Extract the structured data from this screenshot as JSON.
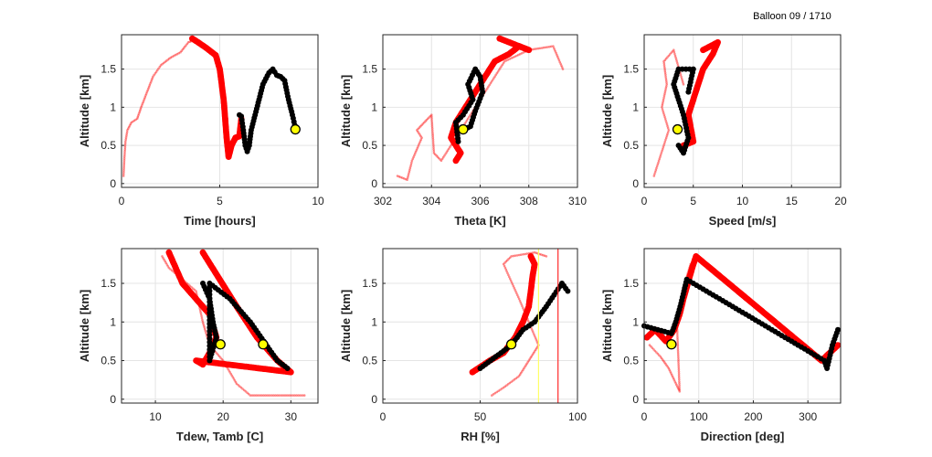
{
  "figure_title": "Balloon 09 / 1710",
  "colors": {
    "track_all": "#ff0000",
    "recent": "#000000",
    "current": "#ffff00",
    "rh_80": "#ffff66",
    "rh_90": "#ff2a2a"
  },
  "chart_data": [
    {
      "type": "scatter",
      "xlabel": "Time [hours]",
      "ylabel": "Altitude [km]",
      "xlim": [
        0,
        10
      ],
      "ylim": [
        -0.05,
        1.95
      ],
      "xticks": [
        0,
        5,
        10
      ],
      "xtick_labels": [
        "0",
        "5",
        "10"
      ],
      "yticks": [
        0,
        0.5,
        1,
        1.5
      ],
      "ytick_labels": [
        "0",
        "0.5",
        "1",
        "1.5"
      ],
      "grid": true,
      "series": [
        {
          "role": "faint",
          "points": [
            [
              0.1,
              0.1
            ],
            [
              0.15,
              0.35
            ],
            [
              0.2,
              0.55
            ],
            [
              0.3,
              0.7
            ],
            [
              0.5,
              0.8
            ],
            [
              0.8,
              0.85
            ],
            [
              1.0,
              1.0
            ],
            [
              1.3,
              1.2
            ],
            [
              1.6,
              1.4
            ],
            [
              2.0,
              1.55
            ],
            [
              2.5,
              1.65
            ],
            [
              3.0,
              1.72
            ],
            [
              3.4,
              1.85
            ],
            [
              3.7,
              1.88
            ]
          ]
        },
        {
          "role": "bold",
          "points": [
            [
              3.6,
              1.9
            ],
            [
              3.9,
              1.85
            ],
            [
              4.3,
              1.78
            ],
            [
              4.6,
              1.72
            ],
            [
              4.8,
              1.68
            ],
            [
              5.0,
              1.5
            ],
            [
              5.2,
              1.1
            ],
            [
              5.35,
              0.6
            ],
            [
              5.45,
              0.35
            ],
            [
              5.6,
              0.5
            ],
            [
              5.8,
              0.6
            ],
            [
              6.0,
              0.62
            ],
            [
              6.1,
              0.85
            ]
          ]
        },
        {
          "role": "recent",
          "points": [
            [
              6.0,
              0.9
            ],
            [
              6.1,
              0.88
            ],
            [
              6.2,
              0.7
            ],
            [
              6.3,
              0.5
            ],
            [
              6.4,
              0.42
            ],
            [
              6.5,
              0.5
            ],
            [
              6.6,
              0.7
            ],
            [
              6.8,
              0.9
            ],
            [
              7.0,
              1.1
            ],
            [
              7.2,
              1.3
            ],
            [
              7.5,
              1.45
            ],
            [
              7.7,
              1.5
            ],
            [
              7.9,
              1.42
            ],
            [
              8.1,
              1.4
            ],
            [
              8.3,
              1.35
            ],
            [
              8.5,
              1.1
            ],
            [
              8.7,
              0.9
            ],
            [
              8.85,
              0.72
            ]
          ]
        }
      ],
      "current": [
        8.85,
        0.71
      ]
    },
    {
      "type": "scatter",
      "xlabel": "Theta [K]",
      "ylabel": "Altitude [km]",
      "xlim": [
        302,
        310
      ],
      "ylim": [
        -0.05,
        1.95
      ],
      "xticks": [
        302,
        304,
        306,
        308,
        310
      ],
      "xtick_labels": [
        "302",
        "304",
        "306",
        "308",
        "310"
      ],
      "yticks": [
        0,
        0.5,
        1,
        1.5
      ],
      "ytick_labels": [
        "0",
        "0.5",
        "1",
        "1.5"
      ],
      "grid": true,
      "series": [
        {
          "role": "faint",
          "points": [
            [
              302.6,
              0.1
            ],
            [
              303.0,
              0.05
            ],
            [
              303.2,
              0.3
            ],
            [
              303.6,
              0.6
            ],
            [
              303.4,
              0.7
            ],
            [
              303.7,
              0.8
            ],
            [
              304.0,
              0.9
            ],
            [
              304.1,
              0.4
            ],
            [
              304.4,
              0.3
            ],
            [
              307.0,
              1.6
            ],
            [
              308.0,
              1.75
            ],
            [
              309.0,
              1.8
            ],
            [
              309.4,
              1.5
            ]
          ]
        },
        {
          "role": "bold",
          "points": [
            [
              305.0,
              0.3
            ],
            [
              305.2,
              0.4
            ],
            [
              304.8,
              0.6
            ],
            [
              305.0,
              0.8
            ],
            [
              305.4,
              1.0
            ],
            [
              305.8,
              1.2
            ],
            [
              306.2,
              1.4
            ],
            [
              306.6,
              1.6
            ],
            [
              307.2,
              1.7
            ],
            [
              307.6,
              1.8
            ],
            [
              308.0,
              1.75
            ],
            [
              306.8,
              1.9
            ]
          ]
        },
        {
          "role": "recent",
          "points": [
            [
              305.1,
              0.55
            ],
            [
              305.0,
              0.8
            ],
            [
              305.3,
              0.9
            ],
            [
              305.7,
              1.1
            ],
            [
              305.5,
              1.3
            ],
            [
              305.8,
              1.5
            ],
            [
              306.0,
              1.4
            ],
            [
              306.1,
              1.2
            ],
            [
              305.8,
              0.95
            ],
            [
              305.6,
              0.75
            ],
            [
              305.3,
              0.7
            ]
          ]
        }
      ],
      "current": [
        305.3,
        0.71
      ]
    },
    {
      "type": "scatter",
      "xlabel": "Speed [m/s]",
      "ylabel": "Altitude [km]",
      "xlim": [
        0,
        20
      ],
      "ylim": [
        -0.05,
        1.95
      ],
      "xticks": [
        0,
        5,
        10,
        15,
        20
      ],
      "xtick_labels": [
        "0",
        "5",
        "10",
        "15",
        "20"
      ],
      "yticks": [
        0,
        0.5,
        1,
        1.5
      ],
      "ytick_labels": [
        "0",
        "0.5",
        "1",
        "1.5"
      ],
      "grid": true,
      "series": [
        {
          "role": "faint",
          "points": [
            [
              1.0,
              0.1
            ],
            [
              1.5,
              0.3
            ],
            [
              2.0,
              0.5
            ],
            [
              2.5,
              0.7
            ],
            [
              1.8,
              1.0
            ],
            [
              2.3,
              1.3
            ],
            [
              2.0,
              1.6
            ],
            [
              3.0,
              1.75
            ],
            [
              4.0,
              1.3
            ]
          ]
        },
        {
          "role": "bold",
          "points": [
            [
              4.0,
              0.5
            ],
            [
              5.0,
              0.55
            ],
            [
              4.5,
              0.9
            ],
            [
              5.0,
              1.1
            ],
            [
              5.5,
              1.3
            ],
            [
              6.0,
              1.5
            ],
            [
              7.0,
              1.7
            ],
            [
              7.5,
              1.85
            ],
            [
              6.0,
              1.75
            ]
          ]
        },
        {
          "role": "recent",
          "points": [
            [
              3.5,
              0.5
            ],
            [
              4.0,
              0.4
            ],
            [
              4.5,
              0.6
            ],
            [
              4.0,
              0.9
            ],
            [
              3.5,
              1.1
            ],
            [
              3.0,
              1.3
            ],
            [
              3.5,
              1.5
            ],
            [
              5.0,
              1.5
            ],
            [
              4.5,
              1.2
            ]
          ]
        }
      ],
      "current": [
        3.4,
        0.71
      ]
    },
    {
      "type": "scatter",
      "xlabel": "Tdew, Tamb [C]",
      "ylabel": "Altitude [km]",
      "xlim": [
        5,
        34
      ],
      "ylim": [
        -0.05,
        1.95
      ],
      "xticks": [
        10,
        20,
        30
      ],
      "xtick_labels": [
        "10",
        "20",
        "30"
      ],
      "yticks": [
        0,
        0.5,
        1,
        1.5
      ],
      "ytick_labels": [
        "0",
        "0.5",
        "1",
        "1.5"
      ],
      "grid": true,
      "series": [
        {
          "role": "faint",
          "points": [
            [
              11.0,
              1.85
            ],
            [
              12.0,
              1.7
            ],
            [
              14.0,
              1.55
            ],
            [
              16.0,
              1.4
            ],
            [
              17.0,
              1.0
            ],
            [
              18.0,
              0.7
            ],
            [
              20.0,
              0.5
            ],
            [
              22.0,
              0.2
            ],
            [
              24.0,
              0.05
            ],
            [
              30.0,
              0.05
            ],
            [
              32.0,
              0.05
            ]
          ]
        },
        {
          "role": "bold",
          "points": [
            [
              12.0,
              1.9
            ],
            [
              14.0,
              1.5
            ],
            [
              16.0,
              1.3
            ],
            [
              18.0,
              1.1
            ],
            [
              19.0,
              0.8
            ],
            [
              18.0,
              0.6
            ],
            [
              17.0,
              0.45
            ],
            [
              16.0,
              0.5
            ],
            [
              30.0,
              0.35
            ],
            [
              28.0,
              0.5
            ],
            [
              25.0,
              0.8
            ],
            [
              22.0,
              1.2
            ],
            [
              17.0,
              1.9
            ]
          ]
        },
        {
          "role": "recent",
          "points": [
            [
              17.0,
              1.5
            ],
            [
              18.0,
              1.3
            ],
            [
              18.5,
              1.0
            ],
            [
              19.0,
              0.8
            ],
            [
              18.0,
              0.5
            ],
            [
              18.0,
              1.5
            ],
            [
              21.0,
              1.3
            ],
            [
              24.0,
              1.0
            ],
            [
              26.0,
              0.75
            ],
            [
              28.0,
              0.5
            ],
            [
              29.5,
              0.4
            ]
          ]
        }
      ],
      "current": [
        [
          19.6,
          0.71
        ],
        [
          25.9,
          0.71
        ]
      ]
    },
    {
      "type": "scatter",
      "xlabel": "RH [%]",
      "ylabel": "Altitude [km]",
      "xlim": [
        0,
        100
      ],
      "ylim": [
        -0.05,
        1.95
      ],
      "xticks": [
        0,
        50,
        100
      ],
      "xtick_labels": [
        "0",
        "50",
        "100"
      ],
      "yticks": [
        0,
        0.5,
        1,
        1.5
      ],
      "ytick_labels": [
        "0",
        "0.5",
        "1",
        "1.5"
      ],
      "grid": true,
      "vlines": [
        80,
        90
      ],
      "series": [
        {
          "role": "faint",
          "points": [
            [
              56.0,
              0.05
            ],
            [
              62.0,
              0.15
            ],
            [
              70.0,
              0.3
            ],
            [
              75.0,
              0.5
            ],
            [
              80.0,
              0.7
            ],
            [
              70.0,
              1.3
            ],
            [
              62.0,
              1.75
            ],
            [
              66.0,
              1.85
            ],
            [
              78.0,
              1.9
            ],
            [
              84.0,
              1.85
            ]
          ]
        },
        {
          "role": "bold",
          "points": [
            [
              46.0,
              0.35
            ],
            [
              55.0,
              0.5
            ],
            [
              62.0,
              0.6
            ],
            [
              68.0,
              0.8
            ],
            [
              72.0,
              1.0
            ],
            [
              75.0,
              1.2
            ],
            [
              76.0,
              1.4
            ],
            [
              77.0,
              1.6
            ],
            [
              78.0,
              1.75
            ],
            [
              76.0,
              1.85
            ]
          ]
        },
        {
          "role": "recent",
          "points": [
            [
              50.0,
              0.4
            ],
            [
              58.0,
              0.55
            ],
            [
              66.0,
              0.7
            ],
            [
              72.0,
              0.9
            ],
            [
              78.0,
              1.0
            ],
            [
              84.0,
              1.2
            ],
            [
              88.0,
              1.35
            ],
            [
              92.0,
              1.5
            ],
            [
              95.0,
              1.4
            ]
          ]
        }
      ],
      "current": [
        66.0,
        0.71
      ]
    },
    {
      "type": "scatter",
      "xlabel": "Direction [deg]",
      "ylabel": "Altitude [km]",
      "xlim": [
        0,
        360
      ],
      "ylim": [
        -0.05,
        1.95
      ],
      "xticks": [
        0,
        100,
        200,
        300
      ],
      "xtick_labels": [
        "0",
        "100",
        "200",
        "300"
      ],
      "yticks": [
        0,
        0.5,
        1,
        1.5
      ],
      "ytick_labels": [
        "0",
        "0.5",
        "1",
        "1.5"
      ],
      "grid": true,
      "series": [
        {
          "role": "faint",
          "points": [
            [
              10.0,
              0.7
            ],
            [
              30.0,
              0.55
            ],
            [
              45.0,
              0.4
            ],
            [
              55.0,
              0.25
            ],
            [
              65.0,
              0.1
            ],
            [
              60.0,
              1.0
            ],
            [
              70.0,
              1.4
            ],
            [
              85.0,
              1.75
            ],
            [
              100.0,
              1.85
            ]
          ]
        },
        {
          "role": "bold",
          "points": [
            [
              5.0,
              0.8
            ],
            [
              20.0,
              0.9
            ],
            [
              40.0,
              0.75
            ],
            [
              55.0,
              0.9
            ],
            [
              65.0,
              1.1
            ],
            [
              72.0,
              1.3
            ],
            [
              80.0,
              1.5
            ],
            [
              88.0,
              1.7
            ],
            [
              95.0,
              1.85
            ],
            [
              325.0,
              0.5
            ],
            [
              340.0,
              0.6
            ],
            [
              355.0,
              0.7
            ]
          ]
        },
        {
          "role": "recent",
          "points": [
            [
              0.0,
              0.95
            ],
            [
              25.0,
              0.9
            ],
            [
              50.0,
              0.85
            ],
            [
              58.0,
              1.0
            ],
            [
              66.0,
              1.2
            ],
            [
              73.0,
              1.4
            ],
            [
              78.0,
              1.55
            ],
            [
              330.0,
              0.5
            ],
            [
              335.0,
              0.4
            ],
            [
              345.0,
              0.7
            ],
            [
              355.0,
              0.9
            ]
          ]
        }
      ],
      "current": [
        50.0,
        0.71
      ]
    }
  ]
}
